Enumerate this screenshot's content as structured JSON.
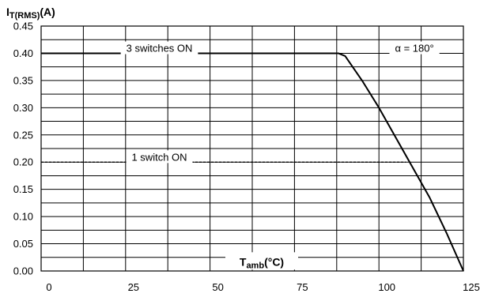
{
  "chart_data": {
    "type": "line",
    "ylabel_main": "I",
    "ylabel_sub": "T(RMS)",
    "ylabel_suffix": "(A)",
    "xlabel_main": "T",
    "xlabel_sub": "amb",
    "xlabel_suffix": "(°C)",
    "xlim": [
      0,
      125
    ],
    "ylim": [
      0,
      0.45
    ],
    "grid": true,
    "x_ticks": [
      0,
      25,
      50,
      75,
      100,
      125
    ],
    "x_tick_labels": [
      "0",
      "25",
      "50",
      "75",
      "100",
      "125"
    ],
    "x_grid_step": 12.5,
    "y_ticks": [
      0,
      0.05,
      0.1,
      0.15,
      0.2,
      0.25,
      0.3,
      0.35,
      0.4,
      0.45
    ],
    "y_tick_labels": [
      "0.00",
      "0.05",
      "0.10",
      "0.15",
      "0.20",
      "0.25",
      "0.30",
      "0.35",
      "0.40",
      "0.45"
    ],
    "series": [
      {
        "name": "3 switches ON",
        "style": "solid",
        "x": [
          0,
          88,
          90,
          95,
          100,
          105,
          110,
          115,
          120,
          125
        ],
        "y": [
          0.4,
          0.4,
          0.395,
          0.35,
          0.3,
          0.245,
          0.19,
          0.135,
          0.07,
          0.0
        ]
      },
      {
        "name": "1 switch ON",
        "style": "dashed",
        "x": [
          0,
          108
        ],
        "y": [
          0.2,
          0.2
        ]
      }
    ],
    "annotations": [
      {
        "text": "3 switches ON",
        "x": 35,
        "y": 0.41
      },
      {
        "text": "1 switch ON",
        "x": 35,
        "y": 0.21
      },
      {
        "text": "α = 180°",
        "x": 110.5,
        "y": 0.41
      }
    ]
  }
}
